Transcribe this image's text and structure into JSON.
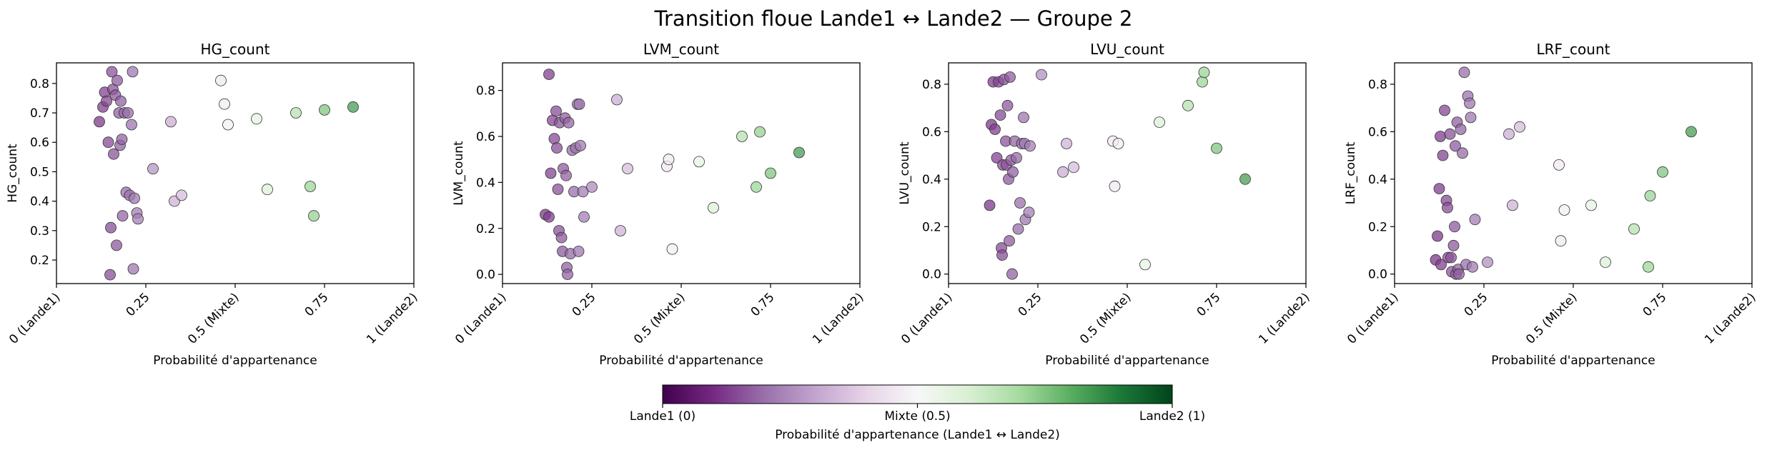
{
  "suptitle": "Transition floue Lande1 ↔ Lande2 — Groupe 2",
  "colorbar": {
    "label": "Probabilité d'appartenance (Lande1 ↔ Lande2)",
    "tick_labels": [
      "Lande1 (0)",
      "Mixte (0.5)",
      "Lande2 (1)"
    ],
    "tick_values": [
      0,
      0.5,
      1
    ],
    "colors": [
      "#40004b",
      "#762a83",
      "#9970ab",
      "#c2a5cf",
      "#e7d4e8",
      "#f7f7f7",
      "#d9f0d3",
      "#a6dba0",
      "#5aae61",
      "#1b7837",
      "#00441b"
    ]
  },
  "chart_data": [
    {
      "type": "scatter",
      "title": "HG_count",
      "xlabel": "Probabilité d'appartenance",
      "ylabel": "HG_count",
      "xlim": [
        0,
        1
      ],
      "ylim": [
        0.12,
        0.87
      ],
      "xticks": [
        0,
        0.25,
        0.5,
        0.75,
        1
      ],
      "xtick_labels": [
        "0 (Lande1)",
        "0.25",
        "0.5 (Mixte)",
        "0.75",
        "1 (Lande2)"
      ],
      "yticks": [
        0.2,
        0.3,
        0.4,
        0.5,
        0.6,
        0.7,
        0.8
      ],
      "ytick_labels": [
        "0.2",
        "0.3",
        "0.4",
        "0.5",
        "0.6",
        "0.7",
        "0.8"
      ],
      "points": [
        {
          "x": 0.12,
          "y": 0.67
        },
        {
          "x": 0.13,
          "y": 0.72
        },
        {
          "x": 0.135,
          "y": 0.77
        },
        {
          "x": 0.14,
          "y": 0.74
        },
        {
          "x": 0.145,
          "y": 0.6
        },
        {
          "x": 0.15,
          "y": 0.15
        },
        {
          "x": 0.152,
          "y": 0.31
        },
        {
          "x": 0.155,
          "y": 0.84
        },
        {
          "x": 0.158,
          "y": 0.78
        },
        {
          "x": 0.16,
          "y": 0.56
        },
        {
          "x": 0.165,
          "y": 0.76
        },
        {
          "x": 0.168,
          "y": 0.25
        },
        {
          "x": 0.17,
          "y": 0.81
        },
        {
          "x": 0.175,
          "y": 0.7
        },
        {
          "x": 0.178,
          "y": 0.59
        },
        {
          "x": 0.18,
          "y": 0.74
        },
        {
          "x": 0.183,
          "y": 0.61
        },
        {
          "x": 0.185,
          "y": 0.35
        },
        {
          "x": 0.19,
          "y": 0.7
        },
        {
          "x": 0.195,
          "y": 0.43
        },
        {
          "x": 0.2,
          "y": 0.7
        },
        {
          "x": 0.205,
          "y": 0.42
        },
        {
          "x": 0.21,
          "y": 0.66
        },
        {
          "x": 0.213,
          "y": 0.84
        },
        {
          "x": 0.215,
          "y": 0.17
        },
        {
          "x": 0.218,
          "y": 0.41
        },
        {
          "x": 0.225,
          "y": 0.36
        },
        {
          "x": 0.228,
          "y": 0.34
        },
        {
          "x": 0.27,
          "y": 0.51
        },
        {
          "x": 0.32,
          "y": 0.67
        },
        {
          "x": 0.33,
          "y": 0.4
        },
        {
          "x": 0.35,
          "y": 0.42
        },
        {
          "x": 0.46,
          "y": 0.81
        },
        {
          "x": 0.47,
          "y": 0.73
        },
        {
          "x": 0.48,
          "y": 0.66
        },
        {
          "x": 0.56,
          "y": 0.68
        },
        {
          "x": 0.59,
          "y": 0.44
        },
        {
          "x": 0.67,
          "y": 0.7
        },
        {
          "x": 0.71,
          "y": 0.45
        },
        {
          "x": 0.72,
          "y": 0.35
        },
        {
          "x": 0.75,
          "y": 0.71
        },
        {
          "x": 0.83,
          "y": 0.72
        }
      ]
    },
    {
      "type": "scatter",
      "title": "LVM_count",
      "xlabel": "Probabilité d'appartenance",
      "ylabel": "LVM_count",
      "xlim": [
        0,
        1
      ],
      "ylim": [
        -0.04,
        0.92
      ],
      "xticks": [
        0,
        0.25,
        0.5,
        0.75,
        1
      ],
      "xtick_labels": [
        "0 (Lande1)",
        "0.25",
        "0.5 (Mixte)",
        "0.75",
        "1 (Lande2)"
      ],
      "yticks": [
        0.0,
        0.2,
        0.4,
        0.6,
        0.8
      ],
      "ytick_labels": [
        "0.0",
        "0.2",
        "0.4",
        "0.6",
        "0.8"
      ],
      "points": [
        {
          "x": 0.12,
          "y": 0.26
        },
        {
          "x": 0.13,
          "y": 0.25
        },
        {
          "x": 0.13,
          "y": 0.87
        },
        {
          "x": 0.135,
          "y": 0.44
        },
        {
          "x": 0.14,
          "y": 0.67
        },
        {
          "x": 0.145,
          "y": 0.59
        },
        {
          "x": 0.15,
          "y": 0.71
        },
        {
          "x": 0.152,
          "y": 0.55
        },
        {
          "x": 0.155,
          "y": 0.37
        },
        {
          "x": 0.158,
          "y": 0.19
        },
        {
          "x": 0.16,
          "y": 0.66
        },
        {
          "x": 0.165,
          "y": 0.16
        },
        {
          "x": 0.168,
          "y": 0.1
        },
        {
          "x": 0.17,
          "y": 0.46
        },
        {
          "x": 0.175,
          "y": 0.68
        },
        {
          "x": 0.178,
          "y": 0.43
        },
        {
          "x": 0.18,
          "y": 0.03
        },
        {
          "x": 0.182,
          "y": 0.0
        },
        {
          "x": 0.185,
          "y": 0.66
        },
        {
          "x": 0.19,
          "y": 0.09
        },
        {
          "x": 0.195,
          "y": 0.54
        },
        {
          "x": 0.2,
          "y": 0.36
        },
        {
          "x": 0.205,
          "y": 0.55
        },
        {
          "x": 0.21,
          "y": 0.74
        },
        {
          "x": 0.213,
          "y": 0.1
        },
        {
          "x": 0.215,
          "y": 0.74
        },
        {
          "x": 0.218,
          "y": 0.56
        },
        {
          "x": 0.225,
          "y": 0.36
        },
        {
          "x": 0.228,
          "y": 0.25
        },
        {
          "x": 0.25,
          "y": 0.38
        },
        {
          "x": 0.32,
          "y": 0.76
        },
        {
          "x": 0.33,
          "y": 0.19
        },
        {
          "x": 0.35,
          "y": 0.46
        },
        {
          "x": 0.46,
          "y": 0.47
        },
        {
          "x": 0.465,
          "y": 0.5
        },
        {
          "x": 0.475,
          "y": 0.11
        },
        {
          "x": 0.55,
          "y": 0.49
        },
        {
          "x": 0.59,
          "y": 0.29
        },
        {
          "x": 0.67,
          "y": 0.6
        },
        {
          "x": 0.71,
          "y": 0.38
        },
        {
          "x": 0.72,
          "y": 0.62
        },
        {
          "x": 0.75,
          "y": 0.44
        },
        {
          "x": 0.83,
          "y": 0.53
        }
      ]
    },
    {
      "type": "scatter",
      "title": "LVU_count",
      "xlabel": "Probabilité d'appartenance",
      "ylabel": "LVU_count",
      "xlim": [
        0,
        1
      ],
      "ylim": [
        -0.04,
        0.89
      ],
      "xticks": [
        0,
        0.25,
        0.5,
        0.75,
        1
      ],
      "xtick_labels": [
        "0 (Lande1)",
        "0.25",
        "0.5 (Mixte)",
        "0.75",
        "1 (Lande2)"
      ],
      "yticks": [
        0.0,
        0.2,
        0.4,
        0.6,
        0.8
      ],
      "ytick_labels": [
        "0.0",
        "0.2",
        "0.4",
        "0.6",
        "0.8"
      ],
      "points": [
        {
          "x": 0.115,
          "y": 0.29
        },
        {
          "x": 0.12,
          "y": 0.63
        },
        {
          "x": 0.125,
          "y": 0.81
        },
        {
          "x": 0.13,
          "y": 0.61
        },
        {
          "x": 0.135,
          "y": 0.49
        },
        {
          "x": 0.14,
          "y": 0.81
        },
        {
          "x": 0.145,
          "y": 0.67
        },
        {
          "x": 0.148,
          "y": 0.11
        },
        {
          "x": 0.15,
          "y": 0.08
        },
        {
          "x": 0.152,
          "y": 0.46
        },
        {
          "x": 0.155,
          "y": 0.82
        },
        {
          "x": 0.16,
          "y": 0.56
        },
        {
          "x": 0.162,
          "y": 0.46
        },
        {
          "x": 0.165,
          "y": 0.71
        },
        {
          "x": 0.168,
          "y": 0.4
        },
        {
          "x": 0.17,
          "y": 0.14
        },
        {
          "x": 0.172,
          "y": 0.83
        },
        {
          "x": 0.175,
          "y": 0.48
        },
        {
          "x": 0.178,
          "y": 0.0
        },
        {
          "x": 0.18,
          "y": 0.43
        },
        {
          "x": 0.185,
          "y": 0.56
        },
        {
          "x": 0.19,
          "y": 0.49
        },
        {
          "x": 0.195,
          "y": 0.19
        },
        {
          "x": 0.2,
          "y": 0.3
        },
        {
          "x": 0.205,
          "y": 0.55
        },
        {
          "x": 0.21,
          "y": 0.66
        },
        {
          "x": 0.213,
          "y": 0.55
        },
        {
          "x": 0.215,
          "y": 0.23
        },
        {
          "x": 0.225,
          "y": 0.26
        },
        {
          "x": 0.228,
          "y": 0.54
        },
        {
          "x": 0.26,
          "y": 0.84
        },
        {
          "x": 0.32,
          "y": 0.43
        },
        {
          "x": 0.33,
          "y": 0.55
        },
        {
          "x": 0.35,
          "y": 0.45
        },
        {
          "x": 0.46,
          "y": 0.56
        },
        {
          "x": 0.465,
          "y": 0.37
        },
        {
          "x": 0.475,
          "y": 0.55
        },
        {
          "x": 0.55,
          "y": 0.04
        },
        {
          "x": 0.59,
          "y": 0.64
        },
        {
          "x": 0.67,
          "y": 0.71
        },
        {
          "x": 0.71,
          "y": 0.81
        },
        {
          "x": 0.715,
          "y": 0.85
        },
        {
          "x": 0.75,
          "y": 0.53
        },
        {
          "x": 0.83,
          "y": 0.4
        }
      ]
    },
    {
      "type": "scatter",
      "title": "LRF_count",
      "xlabel": "Probabilité d'appartenance",
      "ylabel": "LRF_count",
      "xlim": [
        0,
        1
      ],
      "ylim": [
        -0.04,
        0.89
      ],
      "xticks": [
        0,
        0.25,
        0.5,
        0.75,
        1
      ],
      "xtick_labels": [
        "0 (Lande1)",
        "0.25",
        "0.5 (Mixte)",
        "0.75",
        "1 (Lande2)"
      ],
      "yticks": [
        0.0,
        0.2,
        0.4,
        0.6,
        0.8
      ],
      "ytick_labels": [
        "0.0",
        "0.2",
        "0.4",
        "0.6",
        "0.8"
      ],
      "points": [
        {
          "x": 0.115,
          "y": 0.06
        },
        {
          "x": 0.12,
          "y": 0.16
        },
        {
          "x": 0.125,
          "y": 0.36
        },
        {
          "x": 0.128,
          "y": 0.58
        },
        {
          "x": 0.13,
          "y": 0.04
        },
        {
          "x": 0.135,
          "y": 0.5
        },
        {
          "x": 0.14,
          "y": 0.69
        },
        {
          "x": 0.145,
          "y": 0.31
        },
        {
          "x": 0.148,
          "y": 0.28
        },
        {
          "x": 0.15,
          "y": 0.07
        },
        {
          "x": 0.155,
          "y": 0.59
        },
        {
          "x": 0.158,
          "y": 0.07
        },
        {
          "x": 0.16,
          "y": 0.01
        },
        {
          "x": 0.165,
          "y": 0.12
        },
        {
          "x": 0.168,
          "y": 0.2
        },
        {
          "x": 0.17,
          "y": 0.54
        },
        {
          "x": 0.172,
          "y": 0.0
        },
        {
          "x": 0.175,
          "y": 0.64
        },
        {
          "x": 0.178,
          "y": 0.02
        },
        {
          "x": 0.18,
          "y": 0.0
        },
        {
          "x": 0.185,
          "y": 0.61
        },
        {
          "x": 0.19,
          "y": 0.51
        },
        {
          "x": 0.195,
          "y": 0.85
        },
        {
          "x": 0.2,
          "y": 0.04
        },
        {
          "x": 0.205,
          "y": 0.75
        },
        {
          "x": 0.21,
          "y": 0.72
        },
        {
          "x": 0.213,
          "y": 0.66
        },
        {
          "x": 0.218,
          "y": 0.03
        },
        {
          "x": 0.225,
          "y": 0.23
        },
        {
          "x": 0.26,
          "y": 0.05
        },
        {
          "x": 0.32,
          "y": 0.59
        },
        {
          "x": 0.33,
          "y": 0.29
        },
        {
          "x": 0.35,
          "y": 0.62
        },
        {
          "x": 0.46,
          "y": 0.46
        },
        {
          "x": 0.465,
          "y": 0.14
        },
        {
          "x": 0.475,
          "y": 0.27
        },
        {
          "x": 0.55,
          "y": 0.29
        },
        {
          "x": 0.59,
          "y": 0.05
        },
        {
          "x": 0.67,
          "y": 0.19
        },
        {
          "x": 0.71,
          "y": 0.03
        },
        {
          "x": 0.715,
          "y": 0.33
        },
        {
          "x": 0.75,
          "y": 0.43
        },
        {
          "x": 0.83,
          "y": 0.6
        }
      ]
    }
  ]
}
